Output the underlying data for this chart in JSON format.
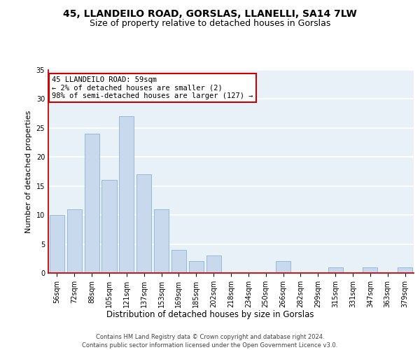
{
  "title1": "45, LLANDEILO ROAD, GORSLAS, LLANELLI, SA14 7LW",
  "title2": "Size of property relative to detached houses in Gorslas",
  "xlabel": "Distribution of detached houses by size in Gorslas",
  "ylabel": "Number of detached properties",
  "categories": [
    "56sqm",
    "72sqm",
    "88sqm",
    "105sqm",
    "121sqm",
    "137sqm",
    "153sqm",
    "169sqm",
    "185sqm",
    "202sqm",
    "218sqm",
    "234sqm",
    "250sqm",
    "266sqm",
    "282sqm",
    "299sqm",
    "315sqm",
    "331sqm",
    "347sqm",
    "363sqm",
    "379sqm"
  ],
  "values": [
    10,
    11,
    24,
    16,
    27,
    17,
    11,
    4,
    2,
    3,
    0,
    0,
    0,
    2,
    0,
    0,
    1,
    0,
    1,
    0,
    1
  ],
  "bar_color": "#c8d9ee",
  "bar_edge_color": "#89b3d4",
  "annotation_text": "45 LLANDEILO ROAD: 59sqm\n← 2% of detached houses are smaller (2)\n98% of semi-detached houses are larger (127) →",
  "annotation_box_color": "#ffffff",
  "annotation_box_edge": "#cc0000",
  "footer_line1": "Contains HM Land Registry data © Crown copyright and database right 2024.",
  "footer_line2": "Contains public sector information licensed under the Open Government Licence v3.0.",
  "ylim": [
    0,
    35
  ],
  "yticks": [
    0,
    5,
    10,
    15,
    20,
    25,
    30,
    35
  ],
  "background_color": "#e8f0f8",
  "grid_color": "#ffffff",
  "title_fontsize": 10,
  "subtitle_fontsize": 9,
  "tick_fontsize": 7,
  "ylabel_fontsize": 8,
  "xlabel_fontsize": 8.5,
  "annotation_fontsize": 7.5,
  "footer_fontsize": 6
}
